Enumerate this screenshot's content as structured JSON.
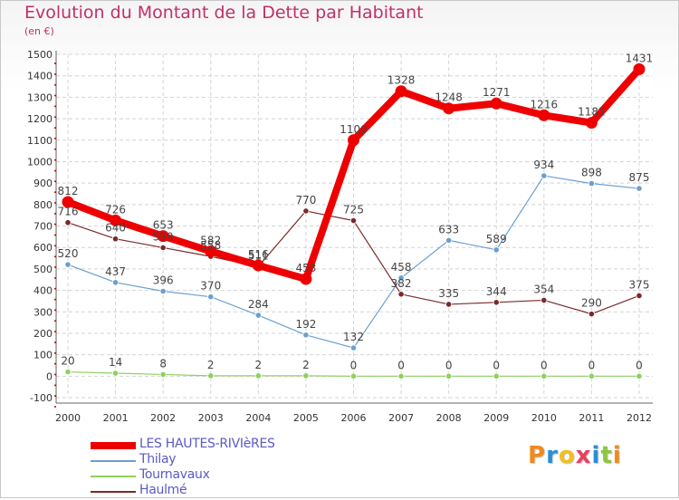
{
  "title": "Evolution du Montant de la Dette par Habitant",
  "subtitle": "(en €)",
  "logo": {
    "letters": [
      "P",
      "r",
      "o",
      "x",
      "i",
      "t",
      "i"
    ],
    "colors": [
      "#f08a1c",
      "#2a8fd8",
      "#f0c020",
      "#e84060",
      "#2a8fd8",
      "#8cc63f",
      "#f08a1c"
    ]
  },
  "chart_data": {
    "type": "line",
    "title": "Evolution du Montant de la Dette par Habitant",
    "ylabel": "(en €)",
    "xlabel": "",
    "x": [
      "2000",
      "2001",
      "2002",
      "2003",
      "2004",
      "2005",
      "2006",
      "2007",
      "2008",
      "2009",
      "2010",
      "2011",
      "2012"
    ],
    "ylim": [
      -100,
      1500
    ],
    "yticks": [
      "-100",
      "0",
      "100",
      "200",
      "300",
      "400",
      "500",
      "600",
      "700",
      "800",
      "900",
      "1000",
      "1100",
      "1200",
      "1300",
      "1400",
      "1500"
    ],
    "grid": true,
    "legend_position": "bottom-left",
    "series": [
      {
        "name": "LES HAUTES-RIVIèRES",
        "color": "#ee0000",
        "values": [
          812,
          726,
          653,
          582,
          516,
          453,
          1100,
          1328,
          1248,
          1271,
          1216,
          1181,
          1431
        ],
        "labels": [
          "812",
          "726",
          "653",
          "582",
          "516",
          "453",
          "1100",
          "1328",
          "1248",
          "1271",
          "1216",
          "1181",
          "1431"
        ]
      },
      {
        "name": "Thilay",
        "color": "#6a9fd0",
        "values": [
          520,
          437,
          396,
          370,
          284,
          192,
          132,
          458,
          633,
          589,
          934,
          898,
          875
        ],
        "labels": [
          "520",
          "437",
          "396",
          "370",
          "284",
          "192",
          "132",
          "458",
          "633",
          "589",
          "934",
          "898",
          "875"
        ]
      },
      {
        "name": "Tournavaux",
        "color": "#8fd060",
        "values": [
          20,
          14,
          8,
          2,
          2,
          2,
          0,
          0,
          0,
          0,
          0,
          0,
          0
        ],
        "labels": [
          "20",
          "14",
          "8",
          "2",
          "2",
          "2",
          "0",
          "0",
          "0",
          "0",
          "0",
          "0",
          "0"
        ]
      },
      {
        "name": "Haulmé",
        "color": "#7a2a2a",
        "values": [
          716,
          640,
          599,
          558,
          511,
          770,
          725,
          382,
          335,
          344,
          354,
          290,
          375
        ],
        "labels": [
          "716",
          "640",
          "599",
          "558",
          "511",
          "770",
          "725",
          "382",
          "335",
          "344",
          "354",
          "290",
          "375"
        ]
      }
    ]
  }
}
